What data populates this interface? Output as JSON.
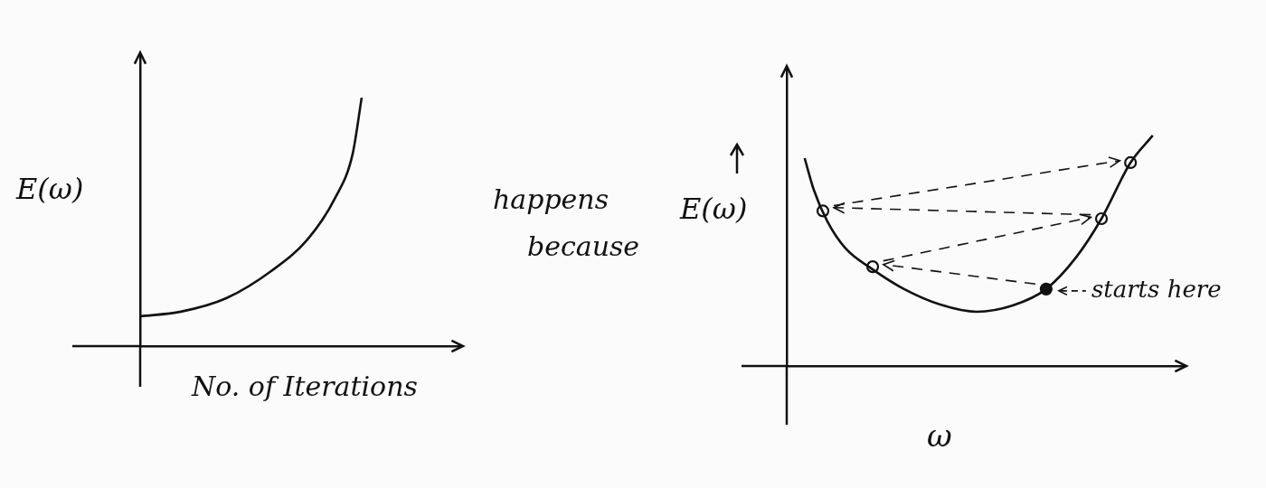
{
  "chart_data": [
    {
      "type": "line",
      "x": [
        0,
        1.27,
        2.68,
        4.08,
        5.21,
        6.06,
        6.62,
        6.9
      ],
      "values": [
        1.02,
        1.18,
        1.64,
        2.57,
        3.65,
        5.05,
        6.59,
        8.51
      ],
      "xlim": [
        0,
        10
      ],
      "ylim": [
        0,
        10
      ],
      "x_label": "No. of Iterations",
      "y_label": "E(ω)",
      "tick_labels": false,
      "grid": false,
      "color": "#111111"
    },
    {
      "type": "line",
      "x": [
        0.45,
        0.68,
        1.02,
        1.48,
        2.16,
        2.95,
        3.86,
        4.77,
        5.68,
        6.52,
        7.27,
        7.91,
        8.64,
        9.2
      ],
      "values": [
        6.97,
        5.91,
        4.85,
        3.94,
        3.24,
        2.58,
        2.06,
        1.82,
        2.03,
        2.58,
        3.64,
        4.94,
        6.82,
        7.73
      ],
      "points": {
        "x": [
          6.52,
          2.16,
          7.91,
          0.91,
          8.64
        ],
        "values": [
          2.58,
          3.33,
          4.94,
          5.2,
          6.82
        ]
      },
      "annotation": "starts here",
      "xlim": [
        0,
        10
      ],
      "ylim": [
        0,
        10
      ],
      "x_label": "ω",
      "y_label": "E(ω)",
      "tick_labels": false,
      "grid": false,
      "color": "#111111"
    }
  ],
  "between_text": "happens because"
}
